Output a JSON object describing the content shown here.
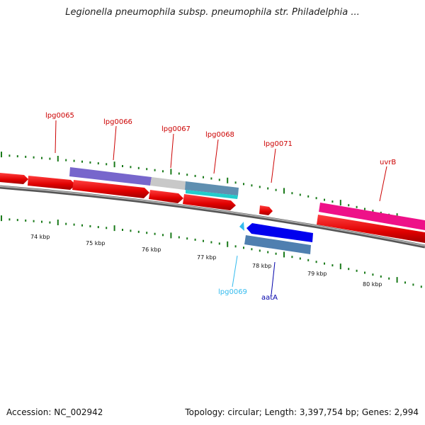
{
  "title": "Legionella pneumophila subsp. pneumophila str. Philadelphia ...",
  "footer": {
    "accession": "Accession: NC_002942",
    "info": "Topology: circular; Length: 3,397,754 bp; Genes: 2,994"
  },
  "colors": {
    "forward_gene": "#e10000",
    "tick": "#1a7a1a",
    "backbone": "#808080",
    "lpg0065": "#7766cc",
    "lpg0066": "#c8c8c8",
    "lpg0067": "#5f8fb0",
    "lpg0068": "#22cccc",
    "lpg0069": "#33bbee",
    "aatA": "#0000ee",
    "aatA_box": "#4f7fb0",
    "uvrB": "#ee1188"
  },
  "axis": {
    "tick_labels": [
      "74 kbp",
      "75 kbp",
      "76 kbp",
      "77 kbp",
      "78 kbp",
      "79 kbp",
      "80 kbp"
    ]
  },
  "gene_labels": [
    {
      "id": "lpg0065",
      "text": "lpg0065"
    },
    {
      "id": "lpg0066",
      "text": "lpg0066"
    },
    {
      "id": "lpg0067",
      "text": "lpg0067"
    },
    {
      "id": "lpg0068",
      "text": "lpg0068"
    },
    {
      "id": "lpg0071",
      "text": "lpg0071"
    },
    {
      "id": "uvrB",
      "text": "uvrB"
    },
    {
      "id": "lpg0069",
      "text": "lpg0069"
    },
    {
      "id": "aatA",
      "text": "aatA"
    }
  ]
}
